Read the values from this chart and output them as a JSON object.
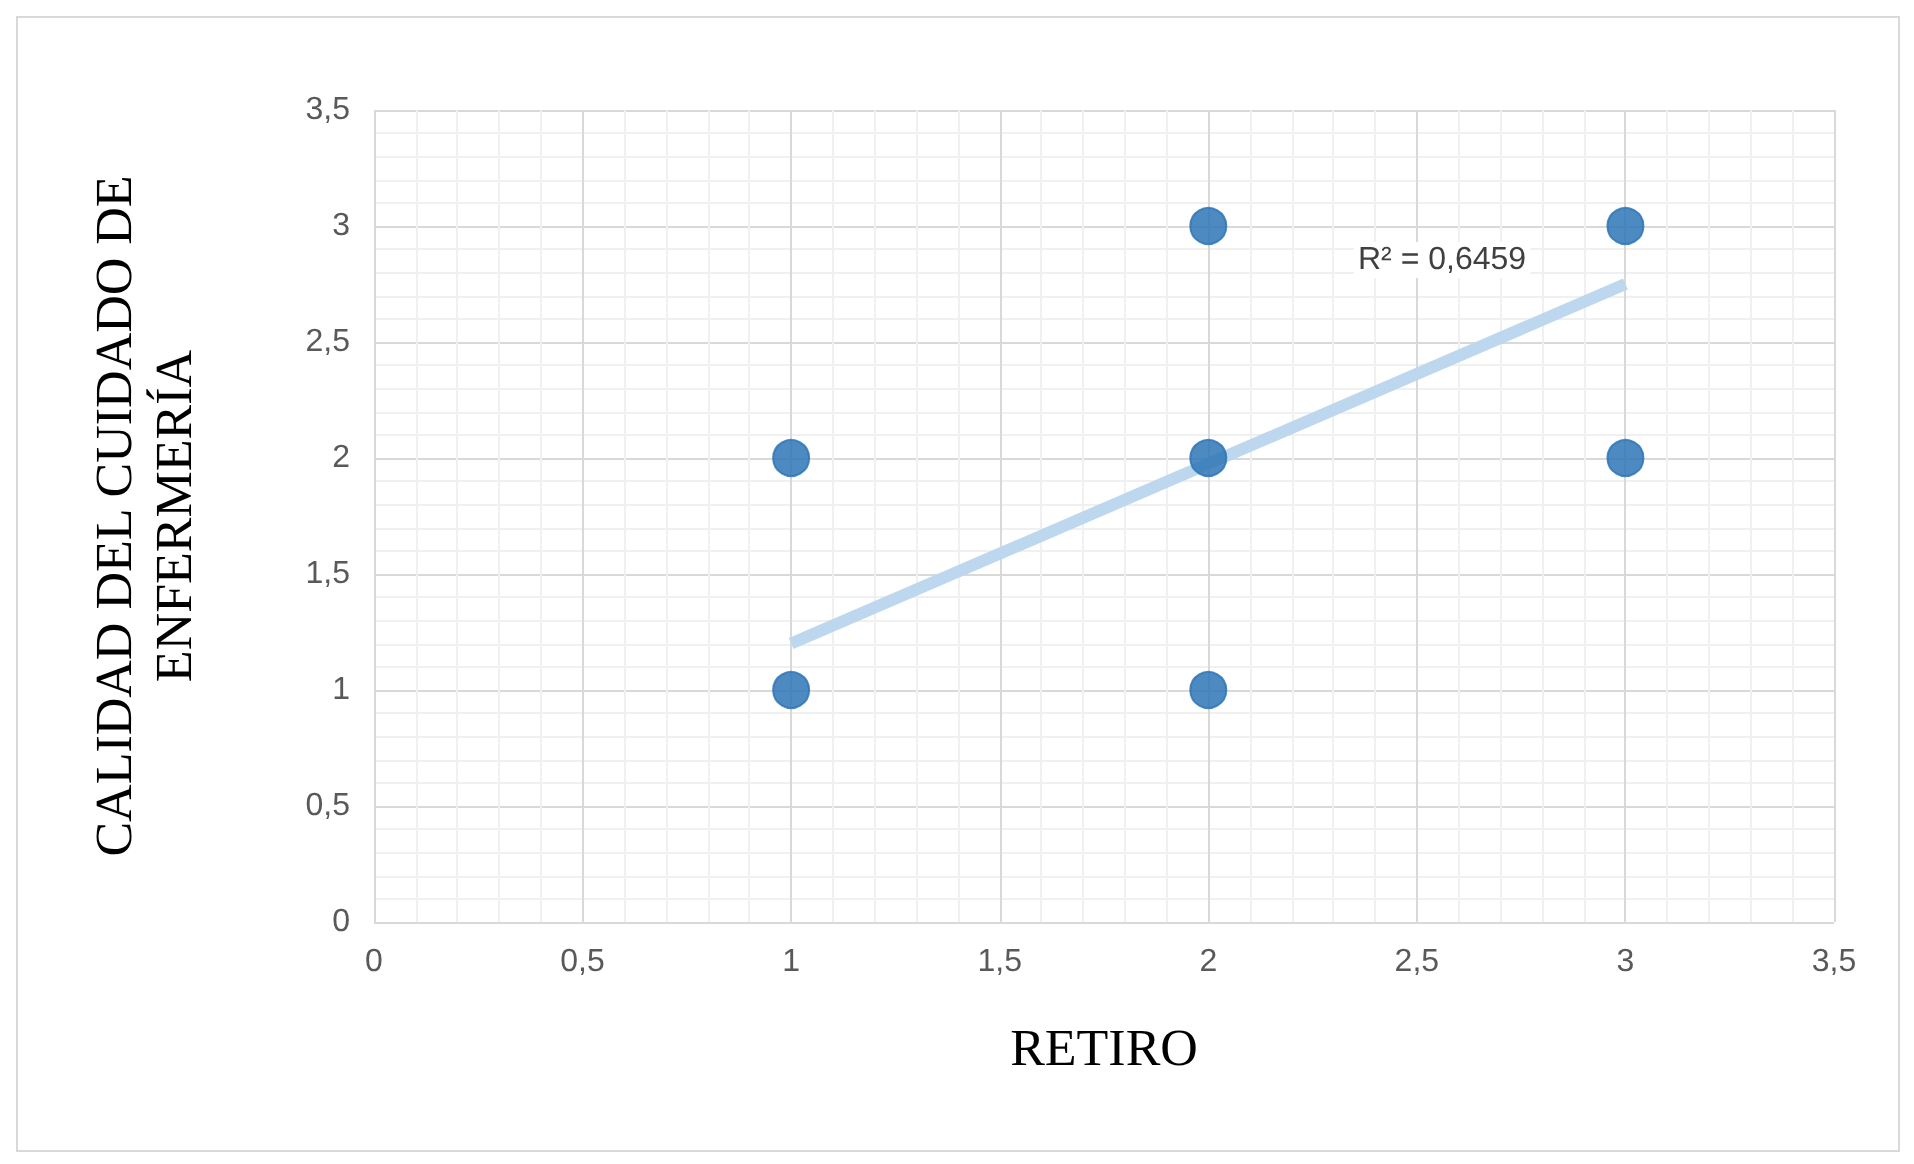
{
  "chart_data": {
    "type": "scatter",
    "xlabel": "RETIRO",
    "ylabel": "CALIDAD DEL CUIDADO DE\nENFERMERÍA",
    "marker": "circle",
    "grid": true,
    "series": [
      {
        "color": "#2e75b6",
        "x": [
          1,
          1,
          2,
          2,
          2,
          3,
          3
        ],
        "values": [
          1,
          2,
          1,
          2,
          3,
          2,
          3
        ]
      },
      {
        "type": "line",
        "marker": "none",
        "color": "#bdd7ee",
        "x": [
          1,
          3
        ],
        "values": [
          1.2,
          2.75
        ]
      }
    ],
    "annotations": [
      "R² = 0,6459"
    ],
    "xlim": [
      0,
      3.5
    ],
    "ylim": [
      0,
      3.5
    ],
    "xticks": [
      0,
      {
        "value": 0.5,
        "label": "0,5"
      },
      1,
      {
        "value": 1.5,
        "label": "1,5"
      },
      2,
      {
        "value": 2.5,
        "label": "2,5"
      },
      3,
      {
        "value": 3.5,
        "label": "3,5"
      }
    ],
    "yticks": [
      0,
      {
        "value": 0.5,
        "label": "0,5"
      },
      1,
      {
        "value": 1.5,
        "label": "1,5"
      },
      2,
      {
        "value": 2.5,
        "label": "2,5"
      },
      3,
      {
        "value": 3.5,
        "label": "3,5"
      }
    ]
  }
}
